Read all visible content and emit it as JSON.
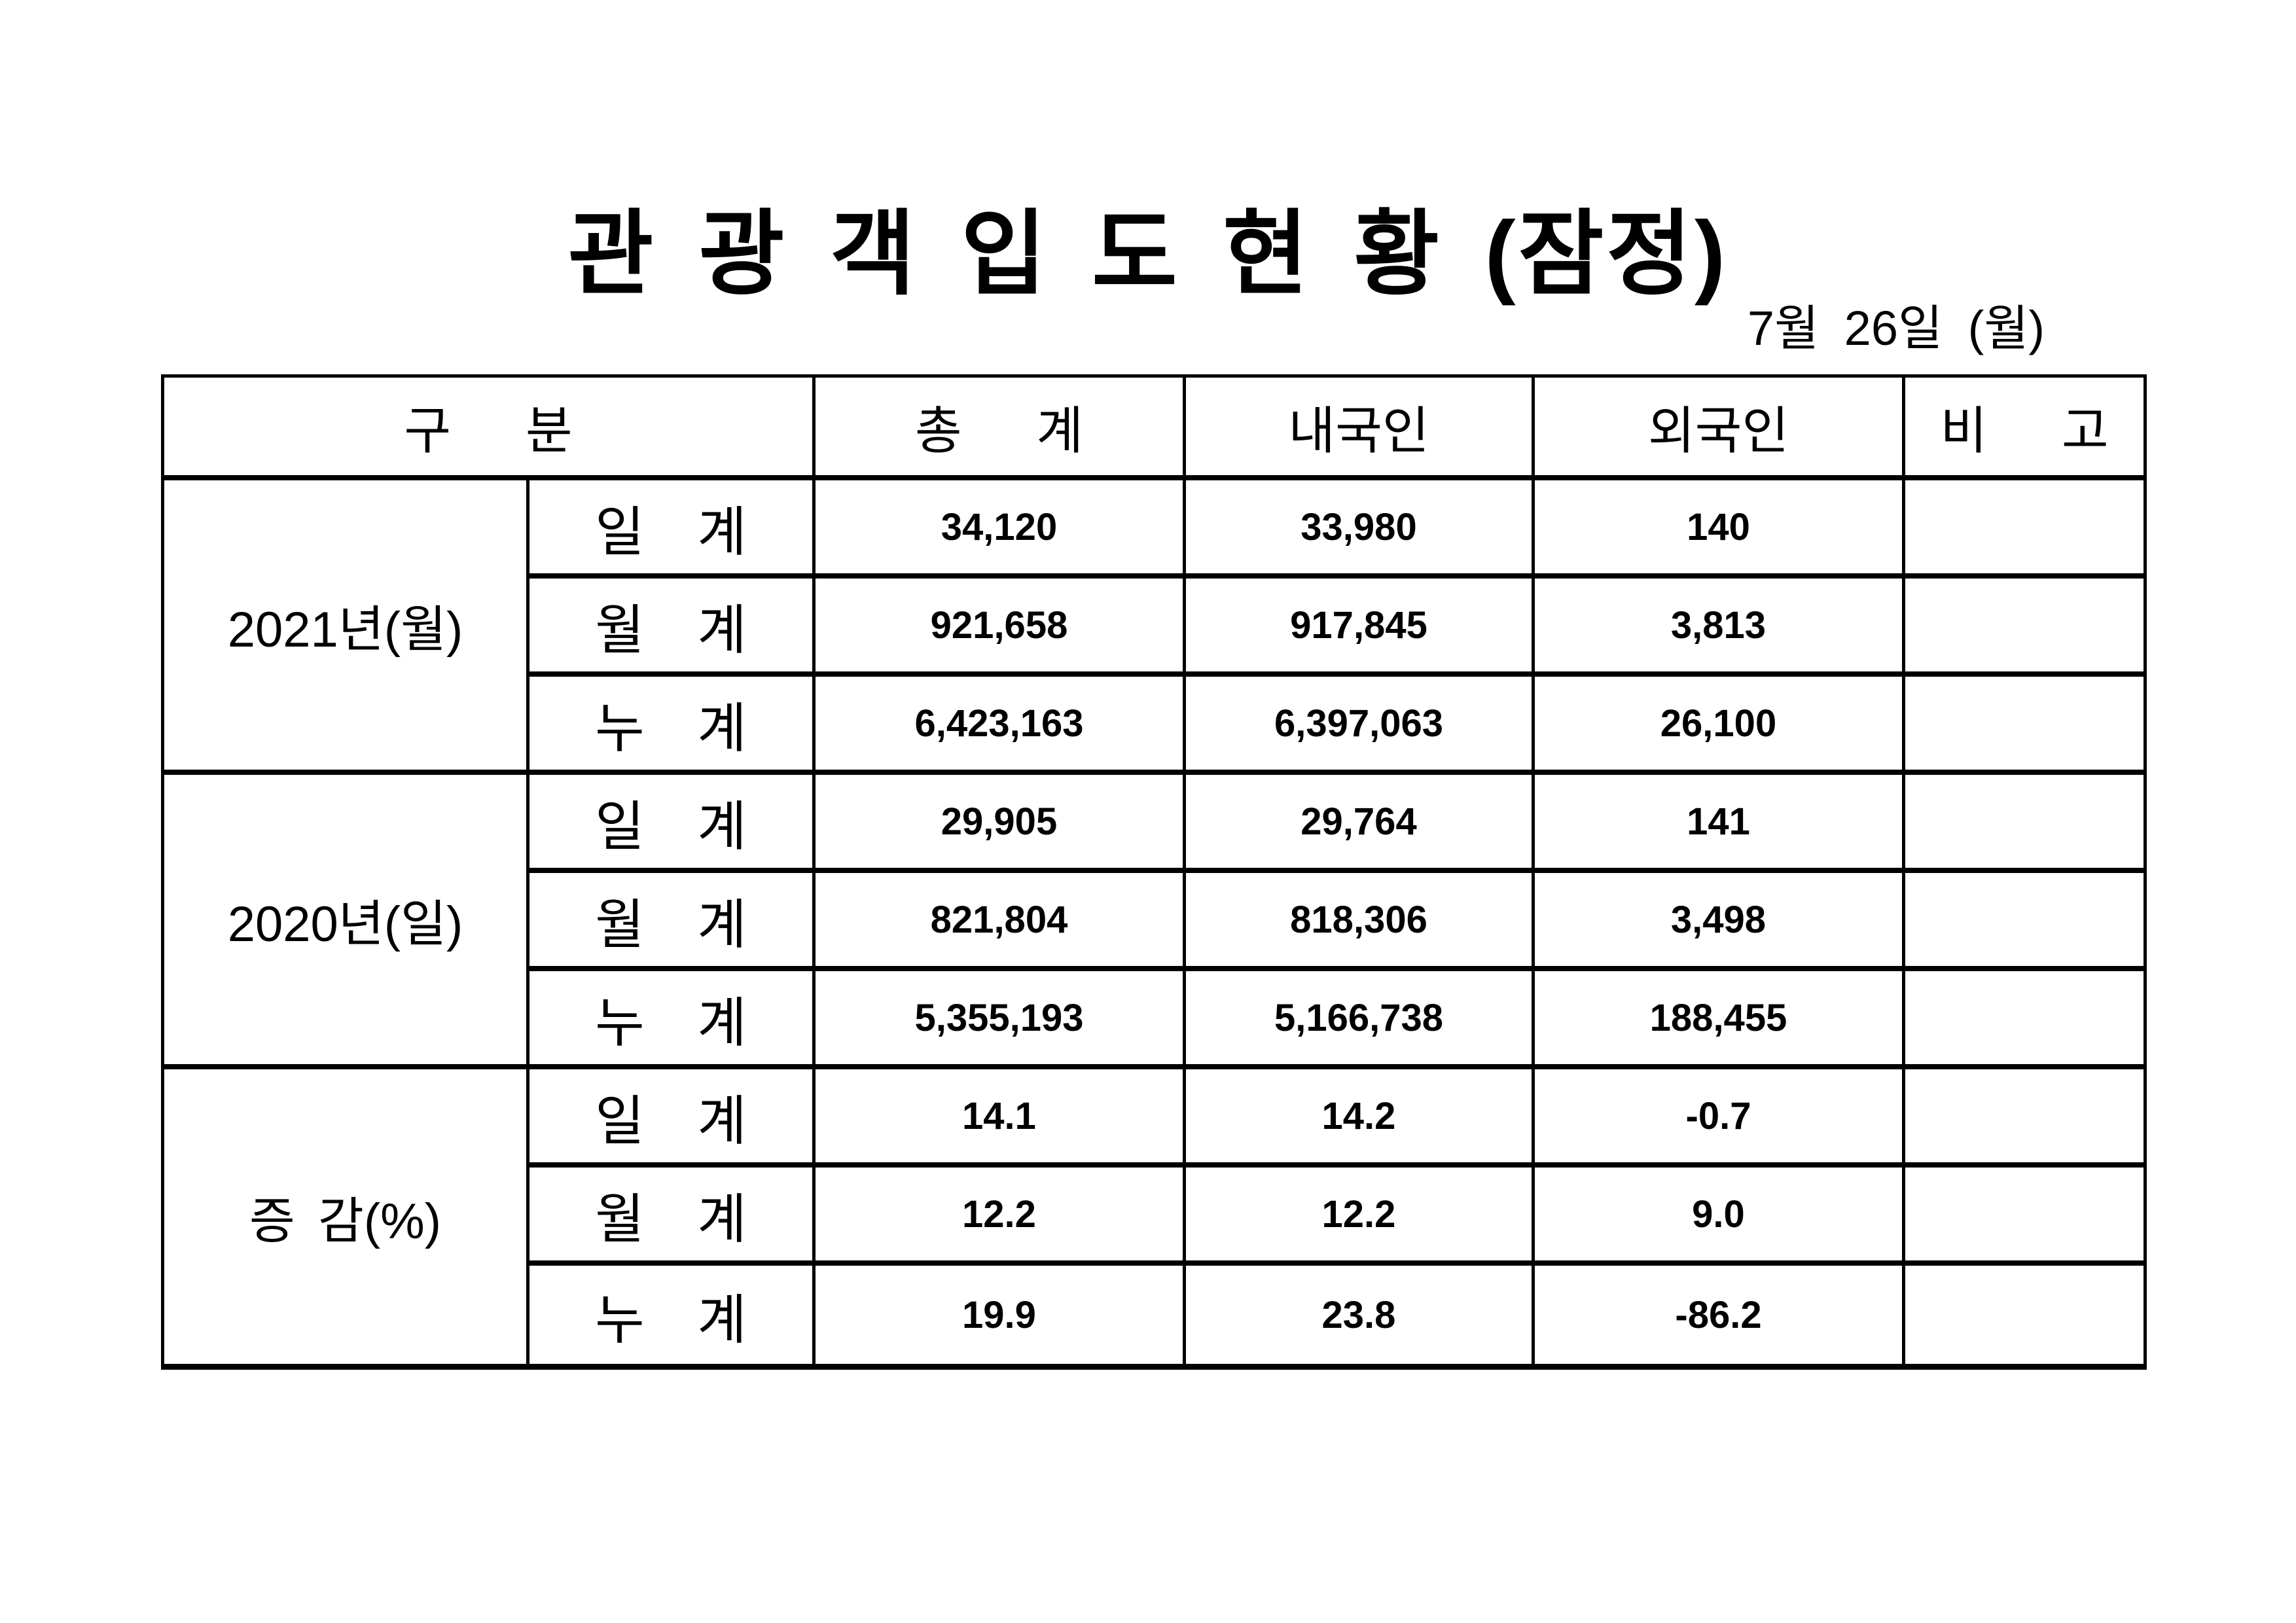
{
  "page": {
    "background": "#ffffff",
    "text_color": "#000000",
    "border_color": "#000000"
  },
  "title": "관 광 객 입 도 현 황 (잠정)",
  "date": "7월 26일 (월)",
  "table": {
    "headers": {
      "category": "구 분",
      "total": "총 계",
      "domestic": "내국인",
      "foreign": "외국인",
      "remarks": "비 고"
    },
    "groups": [
      {
        "label": "2021년(월)",
        "rows": [
          {
            "label": "일 계",
            "total": "34,120",
            "domestic": "33,980",
            "foreign": "140",
            "remarks": ""
          },
          {
            "label": "월 계",
            "total": "921,658",
            "domestic": "917,845",
            "foreign": "3,813",
            "remarks": ""
          },
          {
            "label": "누 계",
            "total": "6,423,163",
            "domestic": "6,397,063",
            "foreign": "26,100",
            "remarks": ""
          }
        ]
      },
      {
        "label": "2020년(일)",
        "rows": [
          {
            "label": "일 계",
            "total": "29,905",
            "domestic": "29,764",
            "foreign": "141",
            "remarks": ""
          },
          {
            "label": "월 계",
            "total": "821,804",
            "domestic": "818,306",
            "foreign": "3,498",
            "remarks": ""
          },
          {
            "label": "누 계",
            "total": "5,355,193",
            "domestic": "5,166,738",
            "foreign": "188,455",
            "remarks": ""
          }
        ]
      },
      {
        "label": "증 감(%)",
        "rows": [
          {
            "label": "일 계",
            "total": "14.1",
            "domestic": "14.2",
            "foreign": "-0.7",
            "remarks": ""
          },
          {
            "label": "월 계",
            "total": "12.2",
            "domestic": "12.2",
            "foreign": "9.0",
            "remarks": ""
          },
          {
            "label": "누 계",
            "total": "19.9",
            "domestic": "23.8",
            "foreign": "-86.2",
            "remarks": ""
          }
        ]
      }
    ]
  }
}
